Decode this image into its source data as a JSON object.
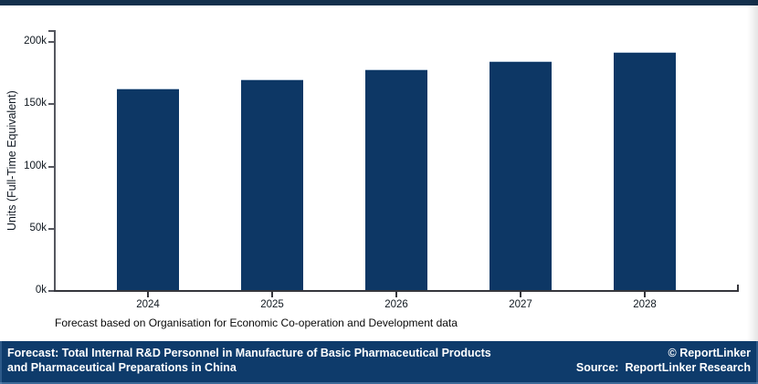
{
  "page": {
    "top_strip_color": "#14304c",
    "background": "#ffffff"
  },
  "chart_data": {
    "type": "bar",
    "categories": [
      "2024",
      "2025",
      "2026",
      "2027",
      "2028"
    ],
    "values": [
      163000,
      170000,
      178000,
      185000,
      192000
    ],
    "title": "",
    "xlabel": "",
    "ylabel": "Units (Full-Time Equivalent)",
    "ylim": [
      0,
      210000
    ],
    "yticks": [
      0,
      50000,
      100000,
      150000,
      200000
    ],
    "ytick_labels": [
      "0k",
      "50k",
      "100k",
      "150k",
      "200k"
    ],
    "bar_color": "#0d3765",
    "grid": false,
    "legend": "none"
  },
  "caption": "Forecast based on Organisation for Economic Co-operation and Development data",
  "footer": {
    "background": "#0e3b6b",
    "title_line1": "Forecast: Total Internal R&D Personnel in Manufacture of Basic Pharmaceutical Products",
    "title_line2": "and Pharmaceutical Preparations in China",
    "copyright": "© ReportLinker",
    "source_label": "Source:",
    "source_value": "ReportLinker Research"
  }
}
